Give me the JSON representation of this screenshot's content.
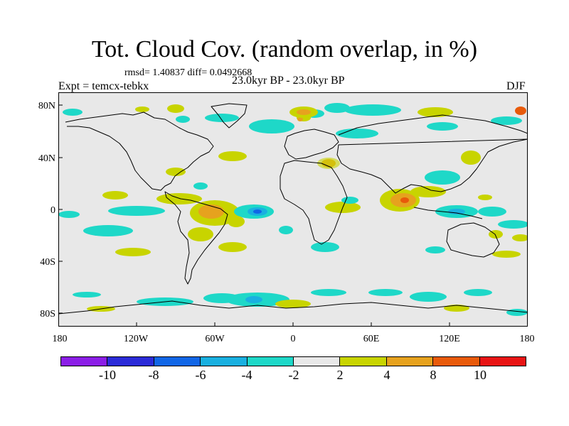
{
  "title": "Tot. Cloud Cov. (random overlap, in %)",
  "stats": "rmsd= 1.40837 diff= 0.0492668",
  "experiment": "Expt = temcx-tebkx",
  "period": "23.0kyr BP - 23.0kyr BP",
  "season": "DJF",
  "y_axis_labels": [
    "80N",
    "40N",
    "0",
    "40S",
    "80S"
  ],
  "x_axis_labels": [
    "180",
    "120W",
    "60W",
    "0",
    "60E",
    "120E",
    "180"
  ],
  "colorbar": {
    "colors": [
      "#8b1ee6",
      "#2b2bd8",
      "#1166e6",
      "#19b0e0",
      "#1ed8c8",
      "#e8e8e8",
      "#c8d400",
      "#e6a21e",
      "#e85a0a",
      "#e81414"
    ],
    "labels": [
      "-10",
      "-8",
      "-6",
      "-4",
      "-2",
      "2",
      "4",
      "8",
      "10"
    ]
  },
  "map": {
    "background": "#e8e8e8",
    "land_outline": "#000000"
  }
}
